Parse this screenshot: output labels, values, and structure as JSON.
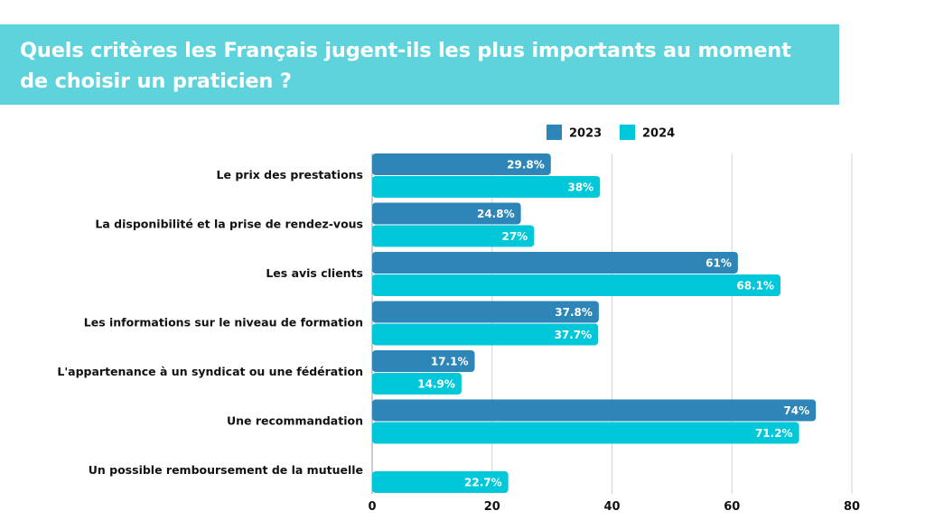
{
  "chart_data": {
    "type": "bar",
    "orientation": "horizontal",
    "title": "Quels critères les Français jugent-ils les plus importants au moment de choisir un praticien ?",
    "categories": [
      "Le prix des prestations",
      "La disponibilité et la prise de rendez-vous",
      "Les avis clients",
      "Les informations sur le niveau de formation",
      "L'appartenance à un syndicat ou une fédération",
      "Une recommandation",
      "Un possible remboursement de la mutuelle"
    ],
    "series": [
      {
        "name": "2023",
        "color": "#2e86b8",
        "values": [
          29.8,
          24.8,
          61,
          37.8,
          17.1,
          74,
          null
        ],
        "labels": [
          "29.8%",
          "24.8%",
          "61%",
          "37.8%",
          "17.1%",
          "74%",
          ""
        ]
      },
      {
        "name": "2024",
        "color": "#00c8d8",
        "values": [
          38,
          27,
          68.1,
          37.7,
          14.9,
          71.2,
          22.7
        ],
        "labels": [
          "38%",
          "27%",
          "68.1%",
          "37.7%",
          "14.9%",
          "71.2%",
          "22.7%"
        ]
      }
    ],
    "xlim": [
      0,
      80
    ],
    "xticks": [
      "0",
      "20",
      "40",
      "60",
      "80"
    ],
    "xtick_values": [
      0,
      20,
      40,
      60,
      80
    ],
    "grid": true,
    "legend_position": "top-right",
    "xlabel": "",
    "ylabel": ""
  }
}
